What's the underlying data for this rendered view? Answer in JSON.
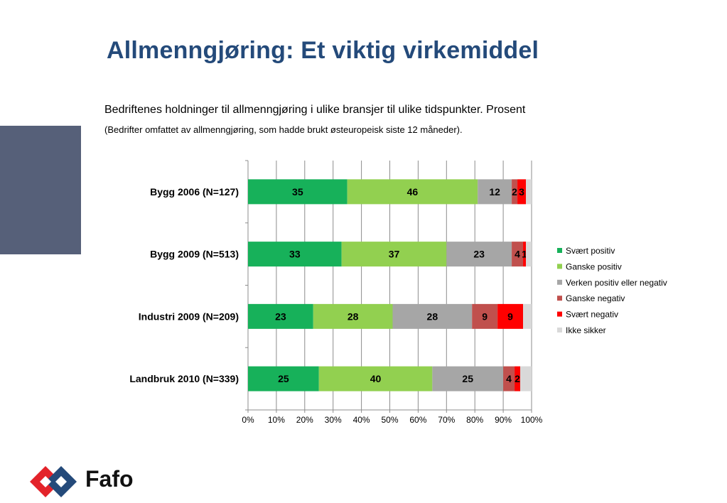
{
  "header": {
    "title": "Allmenngjøring: Et viktig virkemiddel",
    "subtitle": "Bedriftenes holdninger til allmenngjøring i ulike bransjer til ulike tidspunkter. Prosent",
    "note": "(Bedrifter omfattet av allmenngjøring, som hadde brukt østeuropeisk siste 12 måneder)."
  },
  "logo": {
    "text": "Fafo",
    "icon": "fafo-logo-icon"
  },
  "colors": {
    "title": "#244a7a",
    "side_block": "#566079",
    "series": [
      "#17b15a",
      "#92d050",
      "#a6a6a6",
      "#c0504d",
      "#ff0000",
      "#d9d9d9"
    ]
  },
  "chart_data": {
    "type": "bar",
    "orientation": "horizontal",
    "stacked": "percent",
    "categories": [
      "Bygg 2006 (N=127)",
      "Bygg 2009 (N=513)",
      "Industri 2009 (N=209)",
      "Landbruk 2010 (N=339)"
    ],
    "series": [
      {
        "name": "Svært positiv",
        "values": [
          35,
          33,
          23,
          25
        ],
        "labels": [
          "35",
          "33",
          "23",
          "25"
        ]
      },
      {
        "name": "Ganske positiv",
        "values": [
          46,
          37,
          28,
          40
        ],
        "labels": [
          "46",
          "37",
          "28",
          "40"
        ]
      },
      {
        "name": "Verken positiv eller negativ",
        "values": [
          12,
          23,
          28,
          25
        ],
        "labels": [
          "12",
          "23",
          "28",
          "25"
        ]
      },
      {
        "name": "Ganske negativ",
        "values": [
          2,
          4,
          9,
          4
        ],
        "labels": [
          "2",
          "4",
          "9",
          "4"
        ]
      },
      {
        "name": "Svært negativ",
        "values": [
          3,
          1,
          9,
          2
        ],
        "labels": [
          "3",
          "1",
          "9",
          "2"
        ]
      },
      {
        "name": "Ikke sikker",
        "values": [
          2,
          2,
          3,
          4
        ],
        "labels": [
          "",
          "",
          "",
          ""
        ]
      }
    ],
    "x_ticks": [
      "0%",
      "10%",
      "20%",
      "30%",
      "40%",
      "50%",
      "60%",
      "70%",
      "80%",
      "90%",
      "100%"
    ],
    "xlim": [
      0,
      100
    ],
    "grid": true,
    "legend": "right"
  }
}
